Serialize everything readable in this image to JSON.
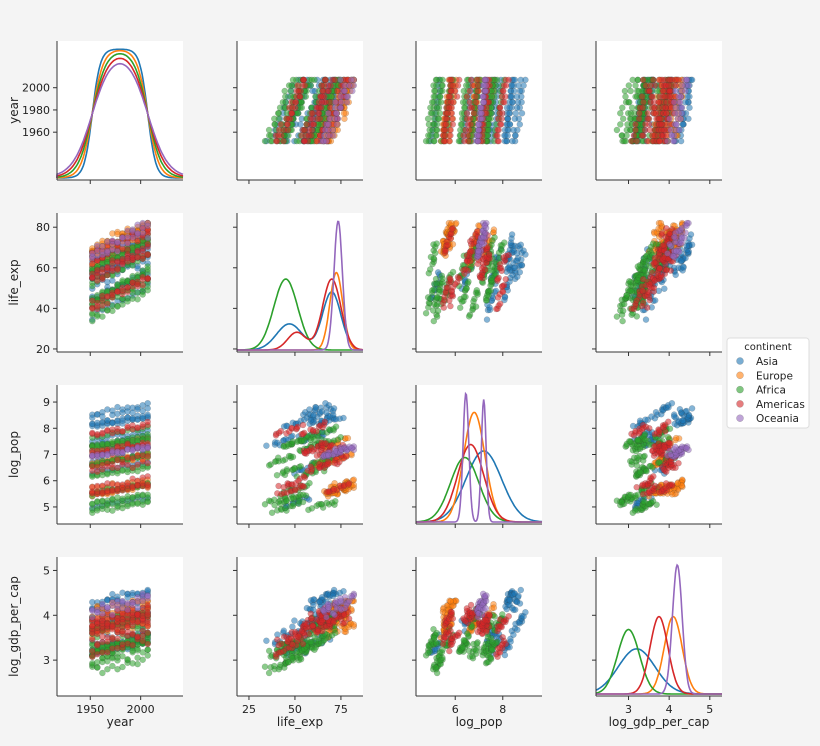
{
  "chart_data": {
    "type": "pairplot",
    "variables": [
      "year",
      "life_exp",
      "log_pop",
      "log_gdp_per_cap"
    ],
    "axes": {
      "year": {
        "label": "year",
        "lim": [
          1917,
          2042
        ],
        "ticks": [
          1960,
          1980,
          2000
        ],
        "xticks": [
          1950,
          2000
        ]
      },
      "life_exp": {
        "label": "life_exp",
        "lim": [
          18.5,
          87
        ],
        "ticks": [
          20,
          40,
          60,
          80
        ],
        "xticks": [
          25,
          50,
          75
        ]
      },
      "log_pop": {
        "label": "log_pop",
        "lim": [
          4.35,
          9.65
        ],
        "ticks": [
          5,
          6,
          7,
          8,
          9
        ],
        "xticks": [
          4,
          6,
          8,
          10
        ]
      },
      "log_gdp_per_cap": {
        "label": "log_gdp_per_cap",
        "lim": [
          2.2,
          5.3
        ],
        "ticks": [
          3,
          4,
          5
        ],
        "xticks": [
          2,
          3,
          4,
          5
        ]
      }
    },
    "legend": {
      "title": "continent",
      "placement": "right",
      "entries": [
        {
          "name": "Asia",
          "color": "#1f77b4"
        },
        {
          "name": "Europe",
          "color": "#ff7f0e"
        },
        {
          "name": "Africa",
          "color": "#2ca02c"
        },
        {
          "name": "Americas",
          "color": "#d62728"
        },
        {
          "name": "Oceania",
          "color": "#9467bd"
        }
      ]
    },
    "years": [
      1952,
      1957,
      1962,
      1967,
      1972,
      1977,
      1982,
      1987,
      1992,
      1997,
      2002,
      2007
    ],
    "series": [
      {
        "name": "Asia",
        "color": "#1f77b4",
        "life_exp": [
          42,
          80
        ],
        "log_pop": [
          5.0,
          9.1
        ],
        "log_gdp": [
          2.6,
          5.0
        ]
      },
      {
        "name": "Europe",
        "color": "#ff7f0e",
        "life_exp": [
          65,
          81
        ],
        "log_pop": [
          5.3,
          7.9
        ],
        "log_gdp": [
          3.2,
          4.6
        ]
      },
      {
        "name": "Africa",
        "color": "#2ca02c",
        "life_exp": [
          30,
          76
        ],
        "log_pop": [
          4.8,
          8.1
        ],
        "log_gdp": [
          2.4,
          4.3
        ]
      },
      {
        "name": "Americas",
        "color": "#d62728",
        "life_exp": [
          38,
          80
        ],
        "log_pop": [
          5.2,
          8.5
        ],
        "log_gdp": [
          3.0,
          4.6
        ]
      },
      {
        "name": "Oceania",
        "color": "#9467bd",
        "life_exp": [
          69,
          81
        ],
        "log_pop": [
          6.9,
          7.3
        ],
        "log_gdp": [
          4.0,
          4.5
        ]
      }
    ],
    "diag_density": {
      "year": {
        "type": "flat",
        "range": [
          1952,
          2007
        ]
      },
      "life_exp": [
        {
          "name": "Asia",
          "peaks": [
            {
              "mu": 47,
              "sd": 7,
              "h": 0.45
            },
            {
              "mu": 70,
              "sd": 5,
              "h": 1.0
            }
          ]
        },
        {
          "name": "Europe",
          "peaks": [
            {
              "mu": 72.5,
              "sd": 3.5,
              "h": 1.0
            }
          ]
        },
        {
          "name": "Africa",
          "peaks": [
            {
              "mu": 45,
              "sd": 6.5,
              "h": 1.0
            }
          ]
        },
        {
          "name": "Americas",
          "peaks": [
            {
              "mu": 51,
              "sd": 5,
              "h": 0.25
            },
            {
              "mu": 70,
              "sd": 5,
              "h": 1.0
            }
          ]
        },
        {
          "name": "Oceania",
          "peaks": [
            {
              "mu": 73.5,
              "sd": 2.3,
              "h": 1.0
            }
          ]
        }
      ],
      "log_pop": [
        {
          "name": "Asia",
          "peaks": [
            {
              "mu": 7.2,
              "sd": 0.75,
              "h": 1.0
            }
          ]
        },
        {
          "name": "Europe",
          "peaks": [
            {
              "mu": 6.8,
              "sd": 0.45,
              "h": 1.0
            }
          ]
        },
        {
          "name": "Africa",
          "peaks": [
            {
              "mu": 6.4,
              "sd": 0.6,
              "h": 1.0
            }
          ]
        },
        {
          "name": "Americas",
          "peaks": [
            {
              "mu": 6.65,
              "sd": 0.55,
              "h": 1.0
            }
          ]
        },
        {
          "name": "Oceania",
          "peaks": [
            {
              "mu": 6.45,
              "sd": 0.12,
              "h": 1.0
            },
            {
              "mu": 7.2,
              "sd": 0.1,
              "h": 0.95
            }
          ]
        }
      ],
      "log_gdp_per_cap": [
        {
          "name": "Asia",
          "peaks": [
            {
              "mu": 3.2,
              "sd": 0.45,
              "h": 1.0
            }
          ]
        },
        {
          "name": "Europe",
          "peaks": [
            {
              "mu": 4.1,
              "sd": 0.22,
              "h": 1.0
            }
          ]
        },
        {
          "name": "Africa",
          "peaks": [
            {
              "mu": 3.0,
              "sd": 0.27,
              "h": 1.0
            }
          ]
        },
        {
          "name": "Americas",
          "peaks": [
            {
              "mu": 3.75,
              "sd": 0.22,
              "h": 1.0
            }
          ]
        },
        {
          "name": "Oceania",
          "peaks": [
            {
              "mu": 4.2,
              "sd": 0.12,
              "h": 1.0
            }
          ]
        }
      ]
    }
  }
}
